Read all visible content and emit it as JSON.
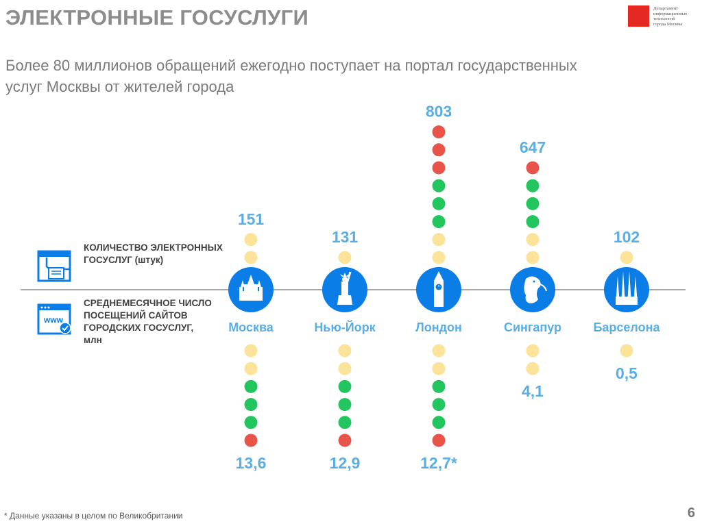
{
  "header": {
    "title": "ЭЛЕКТРОННЫЕ ГОСУСЛУГИ",
    "subtitle": "Более 80 миллионов обращений ежегодно поступает на портал государственных услуг Москвы от жителей города"
  },
  "logo": {
    "text_lines": [
      "Департамент",
      "информационных",
      "технологий",
      "города Москвы"
    ]
  },
  "legend": {
    "services": "КОЛИЧЕСТВО ЭЛЕКТРОННЫХ ГОСУСЛУГ (штук)",
    "visits": "СРЕДНЕМЕСЯЧНОЕ ЧИСЛО ПОСЕЩЕНИЙ САЙТОВ ГОРОДСКИХ ГОСУСЛУГ, млн"
  },
  "footnote": "* Данные указаны в целом по Великобритании",
  "page_number": "6",
  "colors": {
    "accent": "#0a7ee6",
    "value_text": "#5aaee6",
    "dot_yellow": "#fce39a",
    "dot_green": "#22c55e",
    "dot_red": "#e8544a",
    "axis": "#8c8c8c"
  },
  "chart_data": {
    "type": "dot-column",
    "categories": [
      "Москва",
      "Нью-Йорк",
      "Лондон",
      "Сингапур",
      "Барселона"
    ],
    "icons": [
      "kremlin-icon",
      "statue-of-liberty-icon",
      "big-ben-icon",
      "merlion-icon",
      "sagrada-familia-icon"
    ],
    "series": [
      {
        "name": "КОЛИЧЕСТВО ЭЛЕКТРОННЫХ ГОСУСЛУГ (штук)",
        "values": [
          151,
          131,
          803,
          647,
          102
        ],
        "labels": [
          "151",
          "131",
          "803",
          "647",
          "102"
        ],
        "dots_from_axis": [
          [
            "yellow",
            "yellow"
          ],
          [
            "yellow"
          ],
          [
            "yellow",
            "yellow",
            "green",
            "green",
            "green",
            "red",
            "red",
            "red"
          ],
          [
            "yellow",
            "yellow",
            "green",
            "green",
            "green",
            "red"
          ],
          [
            "yellow"
          ]
        ]
      },
      {
        "name": "СРЕДНЕМЕСЯЧНОЕ ЧИСЛО ПОСЕЩЕНИЙ САЙТОВ ГОРОДСКИХ ГОСУСЛУГ, млн",
        "values": [
          13.6,
          12.9,
          12.7,
          4.1,
          0.5
        ],
        "labels": [
          "13,6",
          "12,9",
          "12,7*",
          "4,1",
          "0,5"
        ],
        "dots_from_axis": [
          [
            "yellow",
            "yellow",
            "green",
            "green",
            "green",
            "red"
          ],
          [
            "yellow",
            "yellow",
            "green",
            "green",
            "green",
            "red"
          ],
          [
            "yellow",
            "yellow",
            "green",
            "green",
            "green",
            "red"
          ],
          [
            "yellow",
            "yellow"
          ],
          [
            "yellow"
          ]
        ]
      }
    ]
  }
}
